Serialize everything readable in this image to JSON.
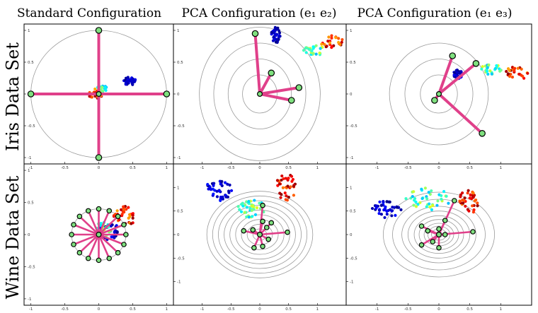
{
  "figure": {
    "col_titles": [
      "Standard Configuration",
      "PCA Configuration (e₁ e₂)",
      "PCA Configuration (e₁ e₃)"
    ],
    "row_titles": [
      "Iris Data Set",
      "Wine Data Set"
    ]
  },
  "colors": {
    "axis_line": "#e0408a",
    "node_fill": "#7fe07f",
    "ring": "#9a9a9a"
  },
  "chart_data": [
    {
      "type": "scatter",
      "name_key": "iris-standard",
      "xlim": [
        -1.1,
        1.1
      ],
      "ylim": [
        -1.1,
        1.1
      ],
      "xticks": [
        -1,
        -0.5,
        0,
        0.5,
        1
      ],
      "yticks": [
        -1,
        -0.5,
        0,
        0.5,
        1
      ],
      "rings": [
        1.0
      ],
      "axes": [
        [
          0,
          1
        ],
        [
          -1,
          0
        ],
        [
          1,
          0
        ],
        [
          0,
          -1
        ]
      ],
      "clusters": [
        {
          "cx": 0.45,
          "cy": 0.2,
          "sx": 0.06,
          "sy": 0.04,
          "n": 30,
          "t0": 0.0,
          "t1": 0.12
        },
        {
          "cx": 0.05,
          "cy": 0.07,
          "sx": 0.05,
          "sy": 0.04,
          "n": 25,
          "t0": 0.3,
          "t1": 0.55
        },
        {
          "cx": -0.05,
          "cy": 0.0,
          "sx": 0.07,
          "sy": 0.05,
          "n": 25,
          "t0": 0.7,
          "t1": 1.0
        }
      ]
    },
    {
      "type": "scatter",
      "name_key": "iris-pca12",
      "xlim": [
        -1.5,
        1.5
      ],
      "ylim": [
        -1.1,
        1.1
      ],
      "xticks": [
        -1,
        -0.5,
        0,
        0.5,
        1,
        1.5
      ],
      "yticks": [
        -1,
        -0.5,
        0,
        0.5,
        1
      ],
      "rings": [
        0.3,
        0.55,
        0.8,
        1.05
      ],
      "axes": [
        [
          -0.08,
          0.95
        ],
        [
          0.2,
          0.33
        ],
        [
          0.68,
          0.1
        ],
        [
          0.55,
          -0.1
        ]
      ],
      "clusters": [
        {
          "cx": 0.28,
          "cy": 0.93,
          "sx": 0.05,
          "sy": 0.08,
          "n": 30,
          "t0": 0.0,
          "t1": 0.12
        },
        {
          "cx": 0.95,
          "cy": 0.68,
          "sx": 0.12,
          "sy": 0.05,
          "n": 25,
          "t0": 0.3,
          "t1": 0.6
        },
        {
          "cx": 1.25,
          "cy": 0.82,
          "sx": 0.12,
          "sy": 0.07,
          "n": 25,
          "t0": 0.7,
          "t1": 1.0
        }
      ]
    },
    {
      "type": "scatter",
      "name_key": "iris-pca13",
      "xlim": [
        -1.5,
        1.5
      ],
      "ylim": [
        -1.1,
        1.1
      ],
      "xticks": [
        -1,
        -0.5,
        0,
        0.5,
        1,
        1.5
      ],
      "yticks": [
        -1,
        -0.5,
        0,
        0.5,
        1
      ],
      "rings": [
        0.3,
        0.55,
        0.8
      ],
      "axes": [
        [
          0.22,
          0.6
        ],
        [
          0.6,
          0.48
        ],
        [
          -0.07,
          -0.1
        ],
        [
          0.7,
          -0.62
        ]
      ],
      "clusters": [
        {
          "cx": 0.3,
          "cy": 0.32,
          "sx": 0.05,
          "sy": 0.05,
          "n": 30,
          "t0": 0.0,
          "t1": 0.12
        },
        {
          "cx": 0.85,
          "cy": 0.38,
          "sx": 0.12,
          "sy": 0.05,
          "n": 25,
          "t0": 0.3,
          "t1": 0.6
        },
        {
          "cx": 1.25,
          "cy": 0.32,
          "sx": 0.12,
          "sy": 0.07,
          "n": 25,
          "t0": 0.7,
          "t1": 1.0
        }
      ]
    },
    {
      "type": "scatter",
      "name_key": "wine-standard",
      "xlim": [
        -1.1,
        1.1
      ],
      "ylim": [
        -1.1,
        1.1
      ],
      "xticks": [
        -1,
        -0.5,
        0,
        0.5,
        1
      ],
      "yticks": [
        -1,
        -0.5,
        0,
        0.5,
        1
      ],
      "rings": [
        0.4
      ],
      "axes": [
        [
          0.0,
          0.4
        ],
        [
          0.154,
          0.37
        ],
        [
          0.283,
          0.283
        ],
        [
          0.37,
          0.154
        ],
        [
          0.4,
          0.0
        ],
        [
          0.37,
          -0.154
        ],
        [
          0.283,
          -0.283
        ],
        [
          0.154,
          -0.37
        ],
        [
          0.0,
          -0.4
        ],
        [
          -0.154,
          -0.37
        ],
        [
          -0.283,
          -0.283
        ],
        [
          -0.37,
          -0.154
        ],
        [
          -0.4,
          0.0
        ],
        [
          -0.37,
          0.154
        ],
        [
          -0.283,
          0.283
        ],
        [
          -0.154,
          0.37
        ]
      ],
      "clusters": [
        {
          "cx": 0.15,
          "cy": 0.05,
          "sx": 0.1,
          "sy": 0.08,
          "n": 30,
          "t0": 0.0,
          "t1": 0.15
        },
        {
          "cx": 0.05,
          "cy": 0.08,
          "sx": 0.08,
          "sy": 0.07,
          "n": 30,
          "t0": 0.3,
          "t1": 0.6
        },
        {
          "cx": 0.38,
          "cy": 0.28,
          "sx": 0.1,
          "sy": 0.1,
          "n": 30,
          "t0": 0.7,
          "t1": 1.0
        }
      ]
    },
    {
      "type": "scatter",
      "name_key": "wine-pca12",
      "xlim": [
        -1.5,
        1.5
      ],
      "ylim": [
        -1.5,
        1.5
      ],
      "xticks": [
        -1,
        -0.5,
        0,
        0.5,
        1,
        1.5
      ],
      "yticks": [
        -1,
        -0.5,
        0,
        0.5,
        1,
        1.5
      ],
      "rings": [
        0.12,
        0.22,
        0.32,
        0.42,
        0.52,
        0.62,
        0.72,
        0.82,
        0.92
      ],
      "axes": [
        [
          0.05,
          0.62
        ],
        [
          0.05,
          0.28
        ],
        [
          0.12,
          0.15
        ],
        [
          -0.28,
          0.08
        ],
        [
          -0.12,
          0.1
        ],
        [
          0.15,
          -0.1
        ],
        [
          -0.1,
          -0.28
        ],
        [
          0.05,
          -0.25
        ],
        [
          0.48,
          0.05
        ],
        [
          0.2,
          0.25
        ]
      ],
      "clusters": [
        {
          "cx": -0.7,
          "cy": 0.95,
          "sx": 0.15,
          "sy": 0.15,
          "n": 40,
          "t0": 0.0,
          "t1": 0.15
        },
        {
          "cx": -0.15,
          "cy": 0.55,
          "sx": 0.15,
          "sy": 0.12,
          "n": 40,
          "t0": 0.3,
          "t1": 0.6
        },
        {
          "cx": 0.45,
          "cy": 1.0,
          "sx": 0.12,
          "sy": 0.18,
          "n": 35,
          "t0": 0.75,
          "t1": 1.0
        }
      ]
    },
    {
      "type": "scatter",
      "name_key": "wine-pca13",
      "xlim": [
        -1.5,
        1.5
      ],
      "ylim": [
        -1.5,
        1.5
      ],
      "xticks": [
        -1,
        -0.5,
        0,
        0.5,
        1,
        1.5
      ],
      "yticks": [
        -1,
        -0.5,
        0,
        0.5,
        1,
        1.5
      ],
      "rings": [
        0.06,
        0.12,
        0.18,
        0.24,
        0.32,
        0.4,
        0.5,
        0.6,
        0.75,
        0.9
      ],
      "axes": [
        [
          0.25,
          0.72
        ],
        [
          -0.28,
          0.18
        ],
        [
          -0.18,
          0.08
        ],
        [
          0.1,
          0.3
        ],
        [
          -0.1,
          -0.15
        ],
        [
          0.55,
          0.06
        ],
        [
          0.0,
          -0.28
        ],
        [
          -0.28,
          -0.22
        ],
        [
          0.1,
          0.0
        ],
        [
          0.0,
          0.12
        ]
      ],
      "clusters": [
        {
          "cx": -0.85,
          "cy": 0.55,
          "sx": 0.15,
          "sy": 0.12,
          "n": 40,
          "t0": 0.0,
          "t1": 0.15
        },
        {
          "cx": -0.15,
          "cy": 0.75,
          "sx": 0.25,
          "sy": 0.15,
          "n": 40,
          "t0": 0.3,
          "t1": 0.6
        },
        {
          "cx": 0.5,
          "cy": 0.7,
          "sx": 0.12,
          "sy": 0.15,
          "n": 35,
          "t0": 0.75,
          "t1": 1.0
        }
      ]
    }
  ]
}
